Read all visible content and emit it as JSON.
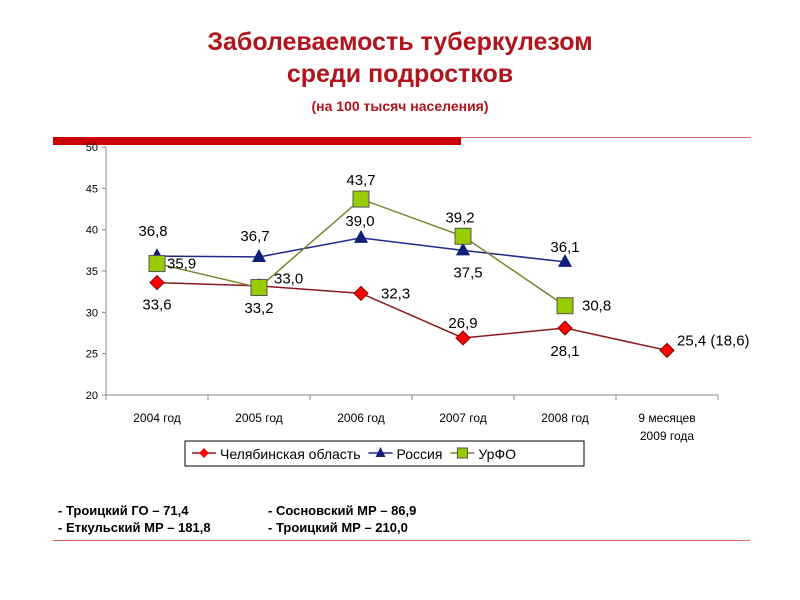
{
  "title": {
    "line1": "Заболеваемость туберкулезом",
    "line2": "среди подростков",
    "subtitle": "(на 100 тысяч населения)"
  },
  "chart_data": {
    "type": "line",
    "categories": [
      "2004 год",
      "2005 год",
      "2006 год",
      "2007 год",
      "2008 год",
      "9 месяцев|2009 года"
    ],
    "ylim": [
      20,
      50
    ],
    "yticks": [
      "20",
      "25",
      "30",
      "35",
      "40",
      "45",
      "50"
    ],
    "grid": false,
    "legend_position": "bottom",
    "series": [
      {
        "name": "Челябинская область",
        "color": "#8b1a1a",
        "marker": "diamond",
        "marker_color": "#ff0000",
        "values": [
          33.6,
          33.2,
          32.3,
          26.9,
          28.1,
          25.4
        ],
        "labels": [
          "33,6",
          "33,2",
          "32,3",
          "26,9",
          "28,1",
          "25,4 (18,6)"
        ]
      },
      {
        "name": "Россия",
        "color": "#1f2a8a",
        "marker": "triangle",
        "marker_color": "#10207a",
        "values": [
          36.8,
          36.7,
          39.0,
          37.5,
          36.1,
          null
        ],
        "labels": [
          "36,8",
          "36,7",
          "39,0",
          "37,5",
          "36,1",
          null
        ]
      },
      {
        "name": "УрФО",
        "color": "#808030",
        "marker": "square",
        "marker_color": "#99cc00",
        "values": [
          35.9,
          33.0,
          43.7,
          39.2,
          30.8,
          null
        ],
        "labels": [
          "35,9",
          "33,0",
          "43,7",
          "39,2",
          "30,8",
          null
        ]
      }
    ]
  },
  "footnotes": {
    "f1": "- Троицкий ГО – 71,4",
    "f2": "- Сосновский МР – 86,9",
    "f3": "- Еткульский МР – 181,8",
    "f4": "- Троицкий МР – 210,0"
  }
}
